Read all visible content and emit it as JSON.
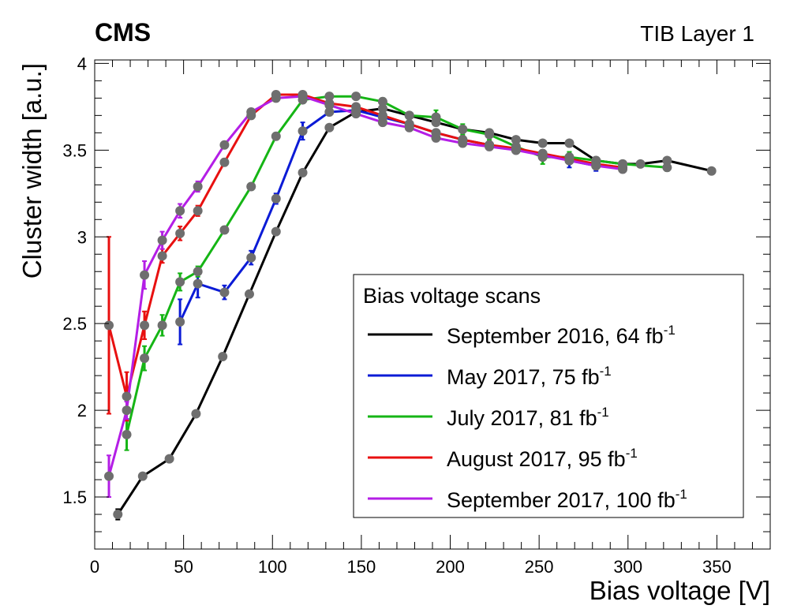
{
  "chart_data": {
    "type": "line",
    "corner_label": "CMS",
    "right_label": "TIB Layer 1",
    "xlabel": "Bias voltage [V]",
    "ylabel": "Cluster width [a.u.]",
    "xlim": [
      0,
      380
    ],
    "ylim": [
      1.2,
      4.02
    ],
    "x_ticks": [
      0,
      50,
      100,
      150,
      200,
      250,
      300,
      350
    ],
    "y_ticks": [
      1.5,
      2,
      2.5,
      3,
      3.5,
      4
    ],
    "x_tick_labels": [
      "0",
      "50",
      "100",
      "150",
      "200",
      "250",
      "300",
      "350"
    ],
    "y_tick_labels": [
      "1.5",
      "2",
      "2.5",
      "3",
      "3.5",
      "4"
    ],
    "marker_color": "#6e6e6e",
    "legend": {
      "title": "Bias voltage scans",
      "placement": "bottom-right"
    },
    "series": [
      {
        "label": "September 2016, 64 fb",
        "sup": "-1",
        "color": "#000000",
        "x": [
          13,
          27,
          42,
          57,
          72,
          87,
          102,
          117,
          132,
          147,
          162,
          177,
          192,
          207,
          222,
          237,
          252,
          267,
          282,
          297,
          307,
          322,
          347
        ],
        "y": [
          1.4,
          1.62,
          1.72,
          1.98,
          2.31,
          2.67,
          3.03,
          3.37,
          3.63,
          3.72,
          3.74,
          3.7,
          3.66,
          3.62,
          3.6,
          3.56,
          3.54,
          3.54,
          3.44,
          3.42,
          3.42,
          3.44,
          3.38
        ],
        "err": [
          0.03,
          0.01,
          0.01,
          0.01,
          0.01,
          0.01,
          0.01,
          0.01,
          0.01,
          0.01,
          0.01,
          0.01,
          0.01,
          0.01,
          0.01,
          0.01,
          0.01,
          0.01,
          0.01,
          0.01,
          0.01,
          0.01,
          0.01
        ]
      },
      {
        "label": "May 2017, 75 fb",
        "sup": "-1",
        "color": "#0b1bd6",
        "x": [
          48,
          58,
          73,
          88,
          102,
          117,
          132,
          147,
          162,
          177,
          192,
          207,
          222,
          237,
          252,
          267,
          282,
          297
        ],
        "y": [
          2.51,
          2.73,
          2.68,
          2.88,
          3.22,
          3.61,
          3.72,
          3.73,
          3.69,
          3.65,
          3.6,
          3.56,
          3.53,
          3.5,
          3.48,
          3.44,
          3.41,
          3.4
        ],
        "err": [
          0.13,
          0.08,
          0.04,
          0.04,
          0.03,
          0.05,
          0.02,
          0.02,
          0.02,
          0.02,
          0.02,
          0.02,
          0.02,
          0.02,
          0.02,
          0.04,
          0.03,
          0.02
        ]
      },
      {
        "label": "July 2017, 81 fb",
        "sup": "-1",
        "color": "#15b515",
        "x": [
          18,
          28,
          38,
          48,
          58,
          73,
          88,
          102,
          117,
          132,
          147,
          162,
          177,
          192,
          207,
          222,
          237,
          252,
          267,
          282,
          297,
          322
        ],
        "y": [
          1.86,
          2.3,
          2.49,
          2.74,
          2.8,
          3.04,
          3.29,
          3.58,
          3.79,
          3.81,
          3.81,
          3.78,
          3.7,
          3.69,
          3.62,
          3.59,
          3.52,
          3.46,
          3.46,
          3.44,
          3.42,
          3.4
        ],
        "err": [
          0.09,
          0.07,
          0.06,
          0.05,
          0.03,
          0.02,
          0.02,
          0.02,
          0.02,
          0.02,
          0.02,
          0.02,
          0.02,
          0.04,
          0.03,
          0.03,
          0.02,
          0.04,
          0.03,
          0.02,
          0.02,
          0.02
        ]
      },
      {
        "label": "August 2017, 95 fb",
        "sup": "-1",
        "color": "#e81010",
        "x": [
          8,
          18,
          28,
          38,
          48,
          58,
          73,
          88,
          102,
          117,
          132,
          147,
          162,
          177,
          192,
          207,
          222,
          237,
          252,
          267,
          282,
          297
        ],
        "y": [
          2.49,
          2.08,
          2.49,
          2.89,
          3.02,
          3.15,
          3.43,
          3.7,
          3.82,
          3.82,
          3.77,
          3.75,
          3.7,
          3.65,
          3.6,
          3.56,
          3.53,
          3.51,
          3.48,
          3.45,
          3.42,
          3.4
        ],
        "err": [
          0.51,
          0.14,
          0.08,
          0.04,
          0.04,
          0.03,
          0.02,
          0.02,
          0.02,
          0.02,
          0.02,
          0.02,
          0.02,
          0.02,
          0.02,
          0.02,
          0.02,
          0.02,
          0.02,
          0.02,
          0.02,
          0.02
        ]
      },
      {
        "label": "September 2017, 100 fb",
        "sup": "-1",
        "color": "#b41ee6",
        "x": [
          8,
          18,
          28,
          38,
          48,
          58,
          73,
          88,
          102,
          117,
          132,
          147,
          162,
          177,
          192,
          207,
          222,
          237,
          252,
          267,
          282,
          297
        ],
        "y": [
          1.62,
          2.0,
          2.78,
          2.98,
          3.15,
          3.29,
          3.53,
          3.72,
          3.8,
          3.81,
          3.76,
          3.71,
          3.66,
          3.63,
          3.57,
          3.54,
          3.52,
          3.5,
          3.47,
          3.44,
          3.41,
          3.39
        ],
        "err": [
          0.12,
          0.05,
          0.08,
          0.05,
          0.04,
          0.03,
          0.02,
          0.02,
          0.02,
          0.02,
          0.02,
          0.02,
          0.02,
          0.02,
          0.02,
          0.02,
          0.02,
          0.02,
          0.02,
          0.02,
          0.02,
          0.02
        ]
      }
    ]
  }
}
